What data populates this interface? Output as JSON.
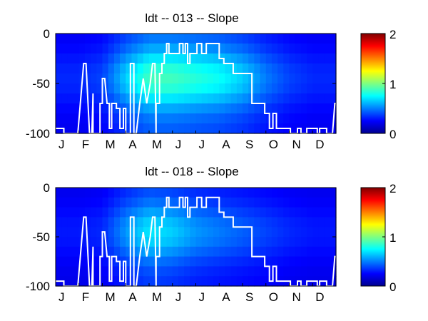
{
  "figure": {
    "colormap": "jet"
  },
  "chart_data": [
    {
      "type": "heatmap",
      "title": "ldt -- 013 -- Slope",
      "xlabel": "",
      "ylabel": "",
      "categories": [
        "J",
        "F",
        "M",
        "A",
        "M",
        "J",
        "J",
        "A",
        "S",
        "O",
        "N",
        "D"
      ],
      "ylim": [
        -100,
        0
      ],
      "yticks": [
        "0",
        "-50",
        "-100"
      ],
      "colorbar": {
        "range": [
          0,
          2
        ],
        "ticks": [
          "2",
          "1",
          "0"
        ]
      },
      "intensity_by_month": [
        0.15,
        0.15,
        0.2,
        0.45,
        0.65,
        0.65,
        0.6,
        0.55,
        0.45,
        0.3,
        0.2,
        0.15
      ],
      "boundary_line": {
        "color": "#ffffff",
        "x_month": [
          0,
          0.35,
          0.35,
          0.95,
          0.95,
          1.2,
          1.3,
          1.45,
          1.55,
          1.6,
          1.6,
          1.9,
          1.9,
          2.0,
          2.0,
          2.1,
          2.2,
          2.3,
          2.3,
          2.4,
          2.4,
          2.6,
          2.6,
          2.75,
          2.75,
          2.9,
          2.9,
          3.0,
          3.0,
          3.2,
          3.2,
          3.35,
          3.35,
          3.45,
          3.45,
          3.6,
          3.6,
          3.75,
          3.75,
          3.9,
          3.9,
          4.05,
          4.05,
          4.15,
          4.25,
          4.3,
          4.3,
          4.45,
          4.45,
          4.55,
          4.55,
          4.65,
          4.65,
          4.75,
          4.75,
          4.85,
          4.85,
          5.3,
          5.3,
          5.45,
          5.45,
          5.55,
          5.55,
          5.65,
          5.65,
          5.75,
          5.75,
          6.05,
          6.05,
          6.25,
          6.25,
          6.45,
          6.45,
          7.0,
          7.0,
          7.2,
          7.2,
          7.6,
          7.6,
          8.4,
          8.4,
          8.95,
          8.95,
          9.15,
          9.15,
          9.3,
          9.3,
          9.45,
          9.45,
          10.05,
          10.05,
          10.35,
          10.35,
          10.5,
          10.5,
          10.75,
          10.75,
          11.2,
          11.2,
          11.3,
          11.3,
          11.6,
          11.6,
          11.85,
          11.95,
          11.95,
          12.0
        ],
        "y": [
          -95,
          -95,
          -100,
          -100,
          -100,
          -30,
          -30,
          -100,
          -100,
          -60,
          -100,
          -100,
          -70,
          -70,
          -45,
          -45,
          -70,
          -70,
          -95,
          -95,
          -70,
          -70,
          -75,
          -75,
          -95,
          -95,
          -75,
          -75,
          -100,
          -100,
          -30,
          -30,
          -100,
          -100,
          -100,
          -70,
          -70,
          -45,
          -45,
          -70,
          -70,
          -50,
          -50,
          -30,
          -30,
          -100,
          -70,
          -70,
          -40,
          -40,
          -30,
          -30,
          -20,
          -20,
          -10,
          -10,
          -20,
          -20,
          -10,
          -10,
          -20,
          -20,
          -10,
          -10,
          -30,
          -30,
          -20,
          -20,
          -10,
          -10,
          -20,
          -20,
          -10,
          -10,
          -25,
          -25,
          -30,
          -30,
          -40,
          -40,
          -70,
          -70,
          -80,
          -80,
          -95,
          -95,
          -80,
          -80,
          -95,
          -95,
          -100,
          -100,
          -95,
          -95,
          -100,
          -100,
          -95,
          -95,
          -100,
          -100,
          -95,
          -95,
          -100,
          -100,
          -70,
          -70,
          -70
        ]
      }
    },
    {
      "type": "heatmap",
      "title": "ldt -- 018 -- Slope",
      "xlabel": "",
      "ylabel": "",
      "categories": [
        "J",
        "F",
        "M",
        "A",
        "M",
        "J",
        "J",
        "A",
        "S",
        "O",
        "N",
        "D"
      ],
      "ylim": [
        -100,
        0
      ],
      "yticks": [
        "0",
        "-50",
        "-100"
      ],
      "colorbar": {
        "range": [
          0,
          2
        ],
        "ticks": [
          "2",
          "1",
          "0"
        ]
      },
      "intensity_by_month": [
        0.12,
        0.12,
        0.15,
        0.35,
        0.5,
        0.45,
        0.35,
        0.3,
        0.25,
        0.2,
        0.15,
        0.12
      ],
      "boundary_line": {
        "color": "#ffffff",
        "x_month": [
          0,
          0.35,
          0.35,
          0.95,
          0.95,
          1.2,
          1.3,
          1.45,
          1.55,
          1.6,
          1.6,
          1.9,
          1.9,
          2.0,
          2.0,
          2.1,
          2.2,
          2.3,
          2.3,
          2.4,
          2.4,
          2.6,
          2.6,
          2.75,
          2.75,
          2.9,
          2.9,
          3.0,
          3.0,
          3.2,
          3.2,
          3.35,
          3.35,
          3.45,
          3.45,
          3.6,
          3.6,
          3.75,
          3.75,
          3.9,
          3.9,
          4.05,
          4.05,
          4.15,
          4.25,
          4.3,
          4.3,
          4.45,
          4.45,
          4.55,
          4.55,
          4.65,
          4.65,
          4.75,
          4.75,
          4.85,
          4.85,
          5.3,
          5.3,
          5.45,
          5.45,
          5.55,
          5.55,
          5.65,
          5.65,
          5.75,
          5.75,
          6.05,
          6.05,
          6.25,
          6.25,
          6.45,
          6.45,
          7.0,
          7.0,
          7.2,
          7.2,
          7.6,
          7.6,
          8.4,
          8.4,
          8.95,
          8.95,
          9.15,
          9.15,
          9.3,
          9.3,
          9.45,
          9.45,
          10.05,
          10.05,
          10.35,
          10.35,
          10.5,
          10.5,
          10.75,
          10.75,
          11.2,
          11.2,
          11.3,
          11.3,
          11.6,
          11.6,
          11.85,
          11.95,
          11.95,
          12.0
        ],
        "y": [
          -95,
          -95,
          -100,
          -100,
          -100,
          -30,
          -30,
          -100,
          -100,
          -60,
          -100,
          -100,
          -70,
          -70,
          -45,
          -45,
          -70,
          -70,
          -95,
          -95,
          -70,
          -70,
          -75,
          -75,
          -95,
          -95,
          -75,
          -75,
          -100,
          -100,
          -30,
          -30,
          -100,
          -100,
          -100,
          -70,
          -70,
          -45,
          -45,
          -70,
          -70,
          -50,
          -50,
          -30,
          -30,
          -100,
          -70,
          -70,
          -40,
          -40,
          -30,
          -30,
          -20,
          -20,
          -10,
          -10,
          -20,
          -20,
          -10,
          -10,
          -20,
          -20,
          -10,
          -10,
          -30,
          -30,
          -20,
          -20,
          -10,
          -10,
          -20,
          -20,
          -10,
          -10,
          -25,
          -25,
          -30,
          -30,
          -40,
          -40,
          -70,
          -70,
          -80,
          -80,
          -95,
          -95,
          -80,
          -80,
          -95,
          -95,
          -100,
          -100,
          -95,
          -95,
          -100,
          -100,
          -95,
          -95,
          -100,
          -100,
          -95,
          -95,
          -100,
          -100,
          -70,
          -70,
          -70
        ]
      }
    }
  ]
}
